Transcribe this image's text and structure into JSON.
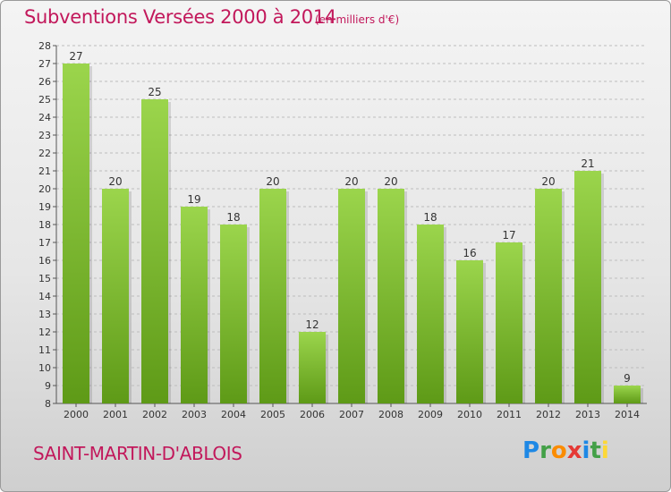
{
  "title": "Subventions Versées 2000 à 2014",
  "unit_note": "(en milliers d'€)",
  "commune": "SAINT-MARTIN-D'ABLOIS",
  "logo": {
    "text": "Proxiti",
    "letters": [
      {
        "ch": "P",
        "color": "#1e88e5"
      },
      {
        "ch": "r",
        "color": "#43a047"
      },
      {
        "ch": "o",
        "color": "#fb8c00"
      },
      {
        "ch": "x",
        "color": "#e53935"
      },
      {
        "ch": "i",
        "color": "#1e88e5"
      },
      {
        "ch": "t",
        "color": "#43a047"
      },
      {
        "ch": "i",
        "color": "#fdd835"
      }
    ]
  },
  "colors": {
    "accent": "#c2185b",
    "bar_top": "#9bd54c",
    "bar_bottom": "#5e9a17",
    "grid": "#bdbdbd",
    "axis_text": "#333333"
  },
  "chart_data": {
    "type": "bar",
    "title": "Subventions Versées 2000 à 2014",
    "subtitle": "(en milliers d'€)",
    "xlabel": "",
    "ylabel": "",
    "categories": [
      "2000",
      "2001",
      "2002",
      "2003",
      "2004",
      "2005",
      "2006",
      "2007",
      "2008",
      "2009",
      "2010",
      "2011",
      "2012",
      "2013",
      "2014"
    ],
    "values": [
      27,
      20,
      25,
      19,
      18,
      20,
      12,
      20,
      20,
      18,
      16,
      17,
      20,
      21,
      9
    ],
    "ylim": [
      8,
      28
    ],
    "yticks": [
      8,
      9,
      10,
      11,
      12,
      13,
      14,
      15,
      16,
      17,
      18,
      19,
      20,
      21,
      22,
      23,
      24,
      25,
      26,
      27,
      28
    ],
    "grid": true,
    "data_labels": true
  }
}
